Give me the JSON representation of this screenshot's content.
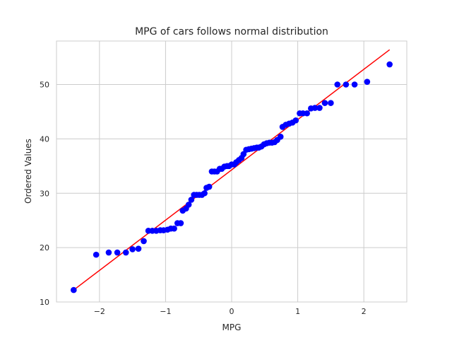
{
  "chart_data": {
    "type": "scatter",
    "title": "MPG of cars follows normal distribution",
    "xlabel": "MPG",
    "ylabel": "Ordered Values",
    "xlim": [
      -2.65,
      2.65
    ],
    "ylim": [
      10,
      58
    ],
    "xticks": [
      -2,
      -1,
      0,
      1,
      2
    ],
    "xtick_labels": [
      "−2",
      "−1",
      "0",
      "1",
      "2"
    ],
    "yticks": [
      10,
      20,
      30,
      40,
      50
    ],
    "ytick_labels": [
      "10",
      "20",
      "30",
      "40",
      "50"
    ],
    "grid": true,
    "colors": {
      "points": "#0000ff",
      "fit_line": "#ff0000",
      "grid": "#cccccc"
    },
    "series": [
      {
        "type": "scatter",
        "points": [
          [
            -2.39,
            12.2
          ],
          [
            -2.05,
            18.7
          ],
          [
            -1.86,
            19.1
          ],
          [
            -1.73,
            19.1
          ],
          [
            -1.6,
            19.1
          ],
          [
            -1.5,
            19.7
          ],
          [
            -1.41,
            19.8
          ],
          [
            -1.33,
            21.2
          ],
          [
            -1.26,
            23.1
          ],
          [
            -1.2,
            23.1
          ],
          [
            -1.14,
            23.1
          ],
          [
            -1.08,
            23.2
          ],
          [
            -1.03,
            23.2
          ],
          [
            -0.97,
            23.3
          ],
          [
            -0.92,
            23.5
          ],
          [
            -0.87,
            23.5
          ],
          [
            -0.82,
            24.5
          ],
          [
            -0.77,
            24.5
          ],
          [
            -0.74,
            26.8
          ],
          [
            -0.69,
            27.2
          ],
          [
            -0.65,
            27.9
          ],
          [
            -0.61,
            28.8
          ],
          [
            -0.57,
            29.7
          ],
          [
            -0.53,
            29.7
          ],
          [
            -0.49,
            29.7
          ],
          [
            -0.45,
            29.7
          ],
          [
            -0.41,
            30.0
          ],
          [
            -0.38,
            31.0
          ],
          [
            -0.34,
            31.2
          ],
          [
            -0.3,
            34.0
          ],
          [
            -0.26,
            34.0
          ],
          [
            -0.22,
            34.0
          ],
          [
            -0.18,
            34.5
          ],
          [
            -0.15,
            34.5
          ],
          [
            -0.11,
            34.9
          ],
          [
            -0.07,
            35.0
          ],
          [
            -0.04,
            35.0
          ],
          [
            0.0,
            35.3
          ],
          [
            0.04,
            35.3
          ],
          [
            0.07,
            35.7
          ],
          [
            0.11,
            36.1
          ],
          [
            0.15,
            36.5
          ],
          [
            0.18,
            37.2
          ],
          [
            0.22,
            38.0
          ],
          [
            0.26,
            38.1
          ],
          [
            0.3,
            38.2
          ],
          [
            0.34,
            38.3
          ],
          [
            0.38,
            38.4
          ],
          [
            0.41,
            38.4
          ],
          [
            0.45,
            38.6
          ],
          [
            0.49,
            39.0
          ],
          [
            0.53,
            39.2
          ],
          [
            0.57,
            39.3
          ],
          [
            0.61,
            39.3
          ],
          [
            0.65,
            39.4
          ],
          [
            0.69,
            39.8
          ],
          [
            0.74,
            40.4
          ],
          [
            0.77,
            42.2
          ],
          [
            0.82,
            42.6
          ],
          [
            0.87,
            42.8
          ],
          [
            0.92,
            43.0
          ],
          [
            0.97,
            43.4
          ],
          [
            1.03,
            44.7
          ],
          [
            1.08,
            44.7
          ],
          [
            1.14,
            44.7
          ],
          [
            1.2,
            45.6
          ],
          [
            1.26,
            45.7
          ],
          [
            1.33,
            45.7
          ],
          [
            1.41,
            46.6
          ],
          [
            1.5,
            46.6
          ],
          [
            1.6,
            50.0
          ],
          [
            1.73,
            50.0
          ],
          [
            1.86,
            50.0
          ],
          [
            2.05,
            50.5
          ],
          [
            2.39,
            53.7
          ]
        ]
      },
      {
        "type": "line",
        "points": [
          [
            -2.39,
            12.2
          ],
          [
            2.39,
            56.4
          ]
        ]
      }
    ]
  }
}
